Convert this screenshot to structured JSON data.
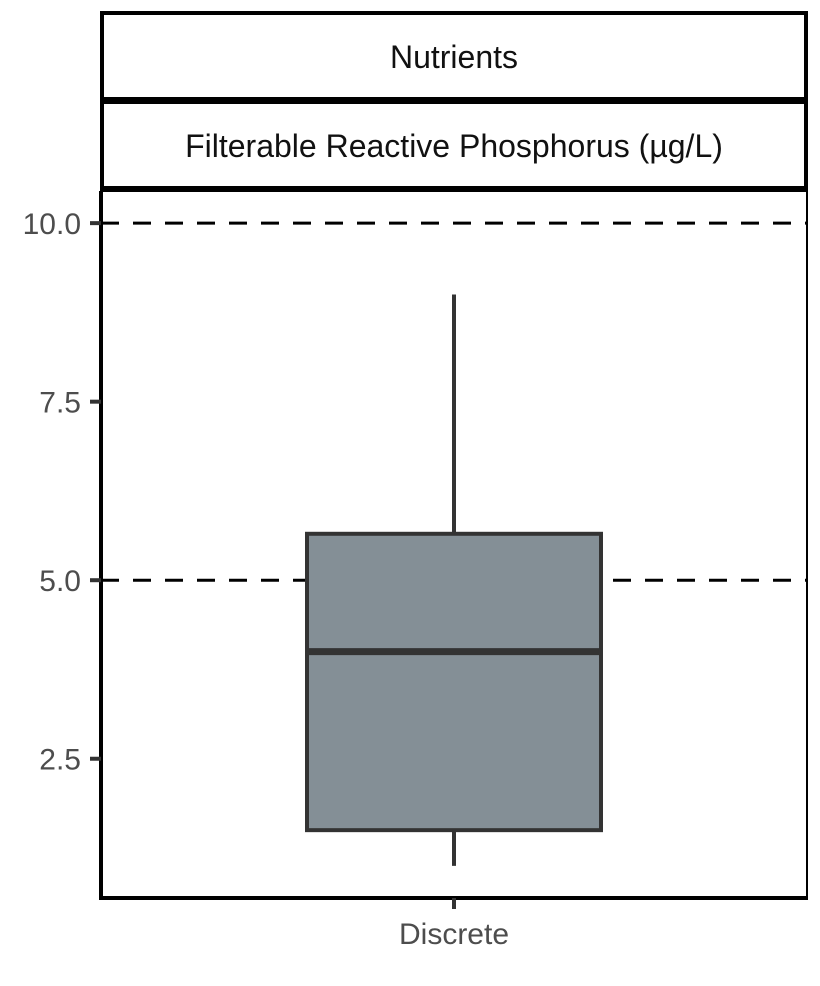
{
  "chart_data": {
    "type": "box",
    "facet_strips": [
      "Nutrients",
      "Filterable Reactive Phosphorus (µg/L)"
    ],
    "categories": [
      "Discrete"
    ],
    "boxes": [
      {
        "category": "Discrete",
        "min": 1.0,
        "q1": 1.5,
        "median": 4.0,
        "q3": 5.65,
        "max": 9.0
      }
    ],
    "reference_lines": [
      5.0,
      10.0
    ],
    "y_ticks": [
      2.5,
      5.0,
      7.5,
      10.0
    ],
    "y_tick_labels": [
      "2.5",
      "5.0",
      "7.5",
      "10.0"
    ],
    "ylim": [
      0.55,
      10.45
    ],
    "box_fill": "#848f96",
    "box_stroke": "#333333",
    "grid": false
  }
}
